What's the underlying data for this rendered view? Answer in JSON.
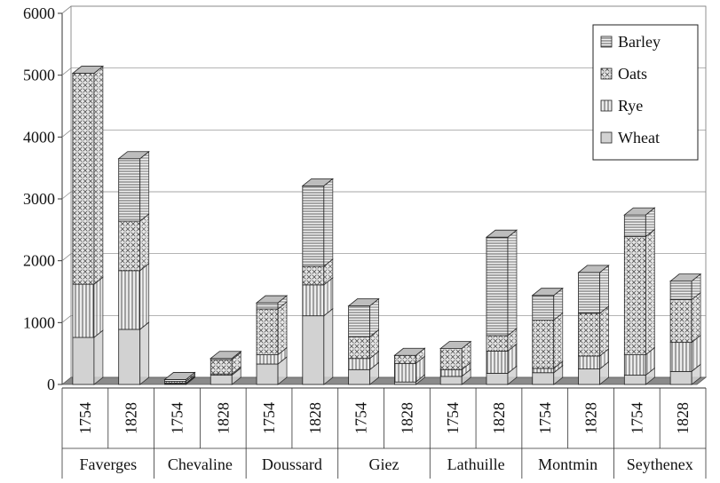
{
  "chart_data": {
    "type": "bar",
    "stacked": true,
    "three_d": true,
    "title": "",
    "xlabel": "",
    "ylabel": "",
    "ylim": [
      0,
      6000
    ],
    "yticks": [
      0,
      1000,
      2000,
      3000,
      4000,
      5000,
      6000
    ],
    "grid": true,
    "legend_position": "top-right",
    "groups": [
      "Faverges",
      "Chevaline",
      "Doussard",
      "Giez",
      "Lathuille",
      "Montmin",
      "Seythenex"
    ],
    "categories": [
      "1754",
      "1828",
      "1754",
      "1828",
      "1754",
      "1828",
      "1754",
      "1828",
      "1754",
      "1828",
      "1754",
      "1828",
      "1754",
      "1828"
    ],
    "series": [
      {
        "name": "Wheat",
        "pattern": "solid",
        "values": [
          760,
          890,
          10,
          150,
          330,
          1110,
          240,
          40,
          130,
          180,
          190,
          250,
          150,
          210
        ]
      },
      {
        "name": "Rye",
        "pattern": "vertical",
        "values": [
          860,
          950,
          10,
          20,
          150,
          500,
          180,
          300,
          110,
          360,
          70,
          210,
          330,
          470
        ]
      },
      {
        "name": "Oats",
        "pattern": "dotted",
        "values": [
          3410,
          800,
          30,
          230,
          740,
          300,
          350,
          130,
          340,
          250,
          780,
          690,
          1910,
          690
        ]
      },
      {
        "name": "Barley",
        "pattern": "horizontal",
        "values": [
          0,
          1010,
          30,
          20,
          100,
          1300,
          500,
          0,
          0,
          1590,
          400,
          660,
          350,
          300
        ]
      }
    ]
  }
}
